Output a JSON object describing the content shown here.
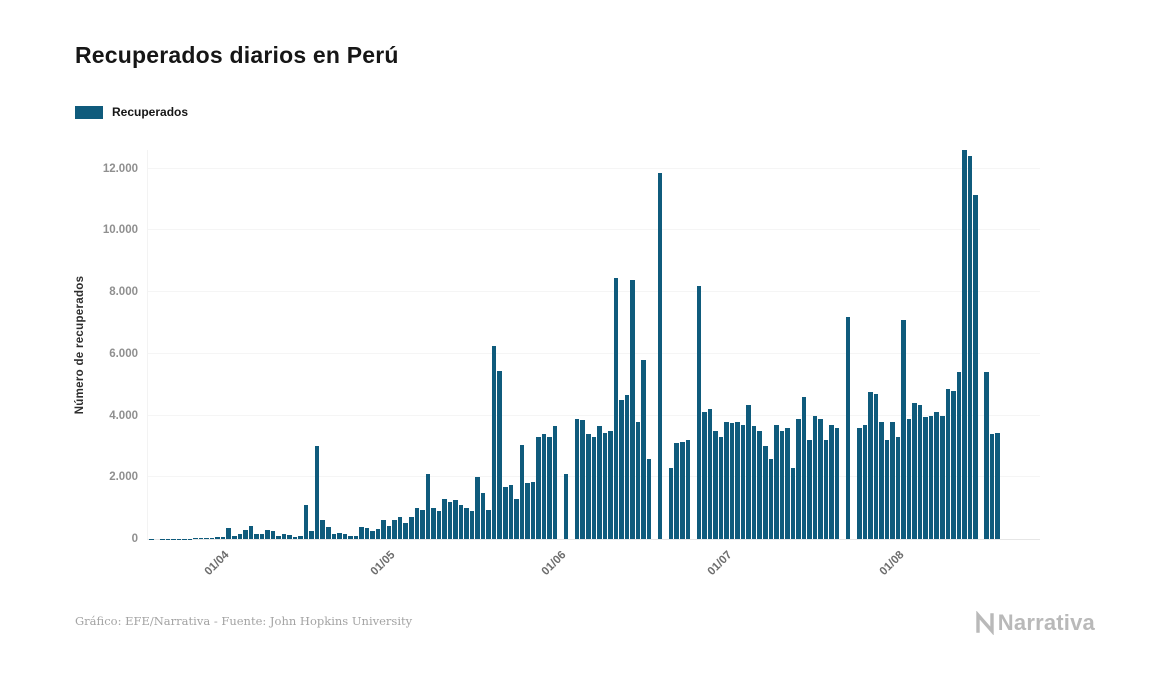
{
  "header": {
    "title": "Recuperados diarios en Perú"
  },
  "legend": {
    "label": "Recuperados",
    "swatch_color": "#0f5b7c"
  },
  "footer": {
    "credit": "Gráfico: EFE/Narrativa - Fuente: John Hopkins University",
    "logo_text": "Narrativa"
  },
  "chart_data": {
    "type": "bar",
    "title": "Recuperados diarios en Perú",
    "xlabel": "",
    "ylabel": "Número de recuperados",
    "series_name": "Recuperados",
    "bar_color": "#0f5b7c",
    "grid": true,
    "legend_position": "top-left",
    "ylim": [
      0,
      12600
    ],
    "y_ticks": [
      {
        "value": 0,
        "label": "0"
      },
      {
        "value": 2000,
        "label": "2.000"
      },
      {
        "value": 4000,
        "label": "4.000"
      },
      {
        "value": 6000,
        "label": "6.000"
      },
      {
        "value": 8000,
        "label": "8.000"
      },
      {
        "value": 10000,
        "label": "10.000"
      },
      {
        "value": 12000,
        "label": "12.000"
      }
    ],
    "x_ticks": [
      "01/04",
      "01/05",
      "01/06",
      "01/07",
      "01/08"
    ],
    "dates": [
      "19/03",
      "20/03",
      "21/03",
      "22/03",
      "23/03",
      "24/03",
      "25/03",
      "26/03",
      "27/03",
      "28/03",
      "29/03",
      "30/03",
      "31/03",
      "01/04",
      "02/04",
      "03/04",
      "04/04",
      "05/04",
      "06/04",
      "07/04",
      "08/04",
      "09/04",
      "10/04",
      "11/04",
      "12/04",
      "13/04",
      "14/04",
      "15/04",
      "16/04",
      "17/04",
      "18/04",
      "19/04",
      "20/04",
      "21/04",
      "22/04",
      "23/04",
      "24/04",
      "25/04",
      "26/04",
      "27/04",
      "28/04",
      "29/04",
      "30/04",
      "01/05",
      "02/05",
      "03/05",
      "04/05",
      "05/05",
      "06/05",
      "07/05",
      "08/05",
      "09/05",
      "10/05",
      "11/05",
      "12/05",
      "13/05",
      "14/05",
      "15/05",
      "16/05",
      "17/05",
      "18/05",
      "19/05",
      "20/05",
      "21/05",
      "22/05",
      "23/05",
      "24/05",
      "25/05",
      "26/05",
      "27/05",
      "28/05",
      "29/05",
      "30/05",
      "31/05",
      "01/06",
      "02/06",
      "03/06",
      "04/06",
      "05/06",
      "06/06",
      "07/06",
      "08/06",
      "09/06",
      "10/06",
      "11/06",
      "12/06",
      "13/06",
      "14/06",
      "15/06",
      "16/06",
      "17/06",
      "18/06",
      "19/06",
      "20/06",
      "21/06",
      "22/06",
      "23/06",
      "24/06",
      "25/06",
      "26/06",
      "27/06",
      "28/06",
      "29/06",
      "30/06",
      "01/07",
      "02/07",
      "03/07",
      "04/07",
      "05/07",
      "06/07",
      "07/07",
      "08/07",
      "09/07",
      "10/07",
      "11/07",
      "12/07",
      "13/07",
      "14/07",
      "15/07",
      "16/07",
      "17/07",
      "18/07",
      "19/07",
      "20/07",
      "21/07",
      "22/07",
      "23/07",
      "24/07",
      "25/07",
      "26/07",
      "27/07",
      "28/07",
      "29/07",
      "30/07",
      "31/07",
      "01/08",
      "02/08",
      "03/08",
      "04/08",
      "05/08",
      "06/08",
      "07/08",
      "08/08",
      "09/08",
      "10/08",
      "11/08",
      "12/08",
      "13/08",
      "14/08",
      "15/08",
      "16/08",
      "17/08",
      "18/08",
      "19/08"
    ],
    "values": [
      2,
      0,
      3,
      5,
      8,
      10,
      14,
      16,
      20,
      25,
      30,
      40,
      55,
      60,
      350,
      100,
      150,
      280,
      420,
      150,
      160,
      300,
      250,
      110,
      150,
      130,
      60,
      90,
      1100,
      250,
      3000,
      600,
      400,
      160,
      210,
      150,
      110,
      90,
      400,
      350,
      260,
      310,
      600,
      420,
      610,
      700,
      520,
      720,
      1000,
      950,
      2100,
      1000,
      900,
      1300,
      1200,
      1250,
      1100,
      1000,
      900,
      2000,
      1500,
      950,
      6250,
      5450,
      1700,
      1750,
      1300,
      3050,
      1800,
      1850,
      3300,
      3400,
      3300,
      3650,
      0,
      2100,
      0,
      3900,
      3850,
      3400,
      3300,
      3650,
      3450,
      3500,
      8450,
      4500,
      4650,
      8400,
      3800,
      5800,
      2600,
      0,
      11850,
      0,
      2300,
      3100,
      3150,
      3200,
      0,
      8200,
      4100,
      4200,
      3500,
      3300,
      3800,
      3750,
      3800,
      3700,
      4350,
      3650,
      3500,
      3000,
      2600,
      3700,
      3500,
      3600,
      2300,
      3900,
      4600,
      3200,
      4000,
      3900,
      3200,
      3700,
      3600,
      0,
      7200,
      0,
      3600,
      3700,
      4750,
      4700,
      3800,
      3200,
      3800,
      3300,
      7100,
      3900,
      4400,
      4350,
      3950,
      4000,
      4100,
      4000,
      4850,
      4800,
      5400,
      12600,
      12400,
      11150,
      0,
      5400,
      3400,
      3450
    ]
  }
}
